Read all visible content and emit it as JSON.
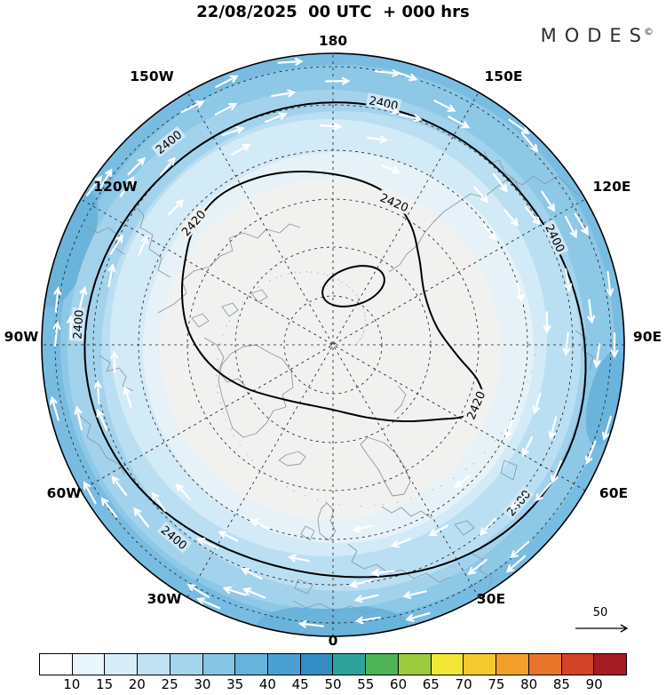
{
  "title": "22/08/2025  00 UTC  + 000 hrs",
  "logo": {
    "text": "MODES",
    "sup": "©"
  },
  "chart_data": {
    "type": "contour-map",
    "projection": "north-polar-stereographic",
    "title": "22/08/2025 00 UTC + 000 hrs",
    "lon_labels": [
      "180",
      "150W",
      "150E",
      "120W",
      "120E",
      "90W",
      "90E",
      "60W",
      "60E",
      "30W",
      "30E",
      "0"
    ],
    "contours": {
      "levels": [
        "2400",
        "2420"
      ]
    },
    "shading": {
      "tick_labels": [
        "10",
        "15",
        "20",
        "25",
        "30",
        "35",
        "40",
        "45",
        "50",
        "55",
        "60",
        "65",
        "70",
        "75",
        "80",
        "85",
        "90"
      ],
      "colors": [
        "#ffffff",
        "#e9f6fc",
        "#d7eef9",
        "#c0e2f3",
        "#a5d4ed",
        "#87c5e5",
        "#67b3dc",
        "#4aa0d2",
        "#338cc4",
        "#2fa39b",
        "#4fb357",
        "#9ccb3d",
        "#f2e735",
        "#f6c92e",
        "#f2a02b",
        "#e87529",
        "#d14427",
        "#a41c24"
      ]
    },
    "reference_arrow": {
      "label": "50"
    },
    "flow_direction": "clockwise",
    "interior_fill": "#f1f2f0",
    "outer_fill": "#79bce1"
  }
}
